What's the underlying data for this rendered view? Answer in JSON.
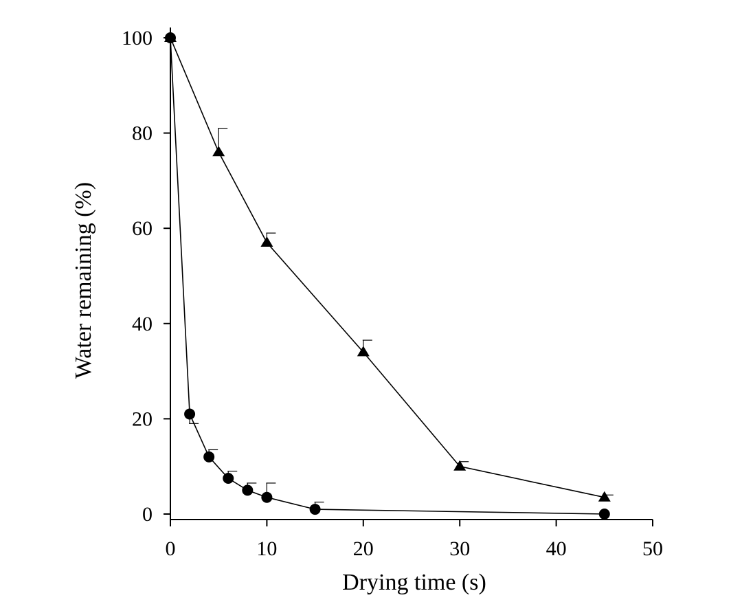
{
  "chart_data": {
    "type": "line",
    "title": "",
    "xlabel": "Drying time (s)",
    "ylabel": "Water remaining (%)",
    "xlim": [
      0,
      50
    ],
    "ylim": [
      0,
      100
    ],
    "xticks": [
      0,
      10,
      20,
      30,
      40,
      50
    ],
    "yticks": [
      0,
      20,
      40,
      60,
      80,
      100
    ],
    "grid": false,
    "legend": "none",
    "series": [
      {
        "name": "triangle-series",
        "marker": "triangle",
        "x": [
          0,
          5,
          10,
          20,
          30,
          45
        ],
        "y": [
          100,
          76,
          57,
          34,
          10,
          3.5
        ],
        "error_upper": [
          0,
          5,
          2,
          2.5,
          1,
          0.5
        ]
      },
      {
        "name": "circle-series",
        "marker": "circle",
        "x": [
          0,
          2,
          4,
          6,
          8,
          10,
          15,
          45
        ],
        "y": [
          100,
          21,
          12,
          7.5,
          5,
          3.5,
          1,
          0
        ],
        "error_upper": [
          0,
          0,
          1.5,
          1.5,
          1.5,
          3,
          1.5,
          0
        ],
        "error_lower": [
          0,
          2,
          0,
          0,
          0,
          0,
          0,
          0
        ]
      }
    ]
  }
}
